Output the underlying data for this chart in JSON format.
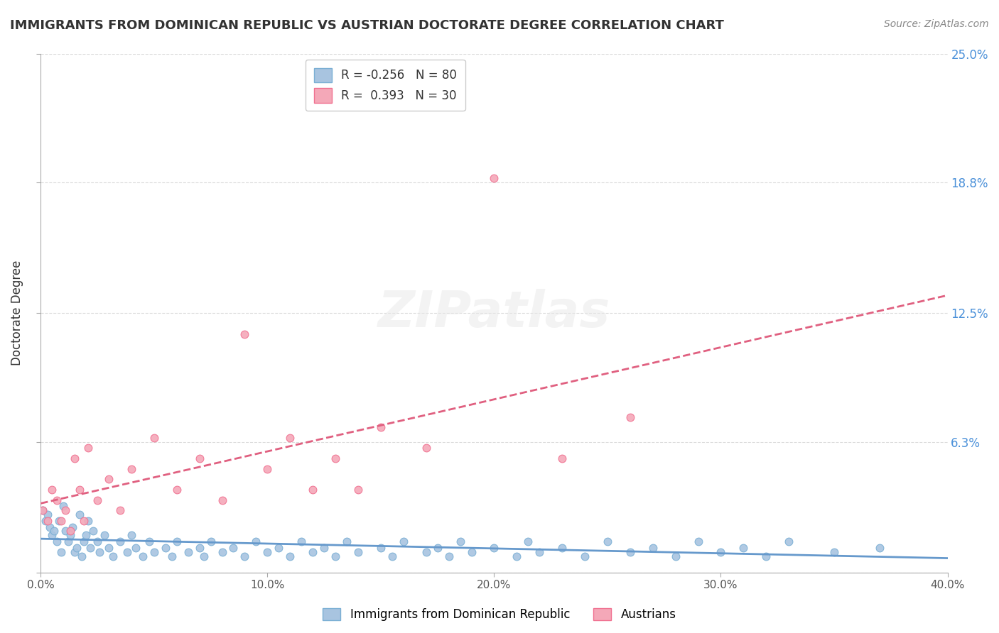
{
  "title": "IMMIGRANTS FROM DOMINICAN REPUBLIC VS AUSTRIAN DOCTORATE DEGREE CORRELATION CHART",
  "source": "Source: ZipAtlas.com",
  "xlabel": "",
  "ylabel": "Doctorate Degree",
  "legend_label_bottom": "Immigrants from Dominican Republic",
  "xmin": 0.0,
  "xmax": 0.4,
  "ymin": 0.0,
  "ymax": 0.25,
  "yticks": [
    0.0,
    0.063,
    0.125,
    0.188,
    0.25
  ],
  "ytick_labels": [
    "",
    "6.3%",
    "12.5%",
    "18.8%",
    "25.0%"
  ],
  "xticks": [
    0.0,
    0.1,
    0.2,
    0.3,
    0.4
  ],
  "xtick_labels": [
    "0.0%",
    "10.0%",
    "20.0%",
    "30.0%",
    "40.0%"
  ],
  "blue_color": "#a8c4e0",
  "pink_color": "#f4a8b8",
  "blue_edge": "#7aafd4",
  "pink_edge": "#f07090",
  "trend_blue": "#6699cc",
  "trend_pink": "#e06080",
  "R_blue": -0.256,
  "N_blue": 80,
  "R_pink": 0.393,
  "N_pink": 30,
  "watermark": "ZIPatlas",
  "blue_scatter_x": [
    0.001,
    0.002,
    0.003,
    0.004,
    0.005,
    0.006,
    0.007,
    0.008,
    0.009,
    0.01,
    0.011,
    0.012,
    0.013,
    0.014,
    0.015,
    0.016,
    0.017,
    0.018,
    0.019,
    0.02,
    0.021,
    0.022,
    0.023,
    0.025,
    0.026,
    0.028,
    0.03,
    0.032,
    0.035,
    0.038,
    0.04,
    0.042,
    0.045,
    0.048,
    0.05,
    0.055,
    0.058,
    0.06,
    0.065,
    0.07,
    0.072,
    0.075,
    0.08,
    0.085,
    0.09,
    0.095,
    0.1,
    0.105,
    0.11,
    0.115,
    0.12,
    0.125,
    0.13,
    0.135,
    0.14,
    0.15,
    0.155,
    0.16,
    0.17,
    0.175,
    0.18,
    0.185,
    0.19,
    0.2,
    0.21,
    0.215,
    0.22,
    0.23,
    0.24,
    0.25,
    0.26,
    0.27,
    0.28,
    0.29,
    0.3,
    0.31,
    0.32,
    0.33,
    0.35,
    0.37
  ],
  "blue_scatter_y": [
    0.03,
    0.025,
    0.028,
    0.022,
    0.018,
    0.02,
    0.015,
    0.025,
    0.01,
    0.032,
    0.02,
    0.015,
    0.018,
    0.022,
    0.01,
    0.012,
    0.028,
    0.008,
    0.015,
    0.018,
    0.025,
    0.012,
    0.02,
    0.015,
    0.01,
    0.018,
    0.012,
    0.008,
    0.015,
    0.01,
    0.018,
    0.012,
    0.008,
    0.015,
    0.01,
    0.012,
    0.008,
    0.015,
    0.01,
    0.012,
    0.008,
    0.015,
    0.01,
    0.012,
    0.008,
    0.015,
    0.01,
    0.012,
    0.008,
    0.015,
    0.01,
    0.012,
    0.008,
    0.015,
    0.01,
    0.012,
    0.008,
    0.015,
    0.01,
    0.012,
    0.008,
    0.015,
    0.01,
    0.012,
    0.008,
    0.015,
    0.01,
    0.012,
    0.008,
    0.015,
    0.01,
    0.012,
    0.008,
    0.015,
    0.01,
    0.012,
    0.008,
    0.015,
    0.01,
    0.012
  ],
  "pink_scatter_x": [
    0.001,
    0.003,
    0.005,
    0.007,
    0.009,
    0.011,
    0.013,
    0.015,
    0.017,
    0.019,
    0.021,
    0.025,
    0.03,
    0.035,
    0.04,
    0.05,
    0.06,
    0.07,
    0.08,
    0.09,
    0.1,
    0.11,
    0.12,
    0.13,
    0.14,
    0.15,
    0.17,
    0.2,
    0.23,
    0.26
  ],
  "pink_scatter_y": [
    0.03,
    0.025,
    0.04,
    0.035,
    0.025,
    0.03,
    0.02,
    0.055,
    0.04,
    0.025,
    0.06,
    0.035,
    0.045,
    0.03,
    0.05,
    0.065,
    0.04,
    0.055,
    0.035,
    0.115,
    0.05,
    0.065,
    0.04,
    0.055,
    0.04,
    0.07,
    0.06,
    0.19,
    0.055,
    0.075
  ]
}
